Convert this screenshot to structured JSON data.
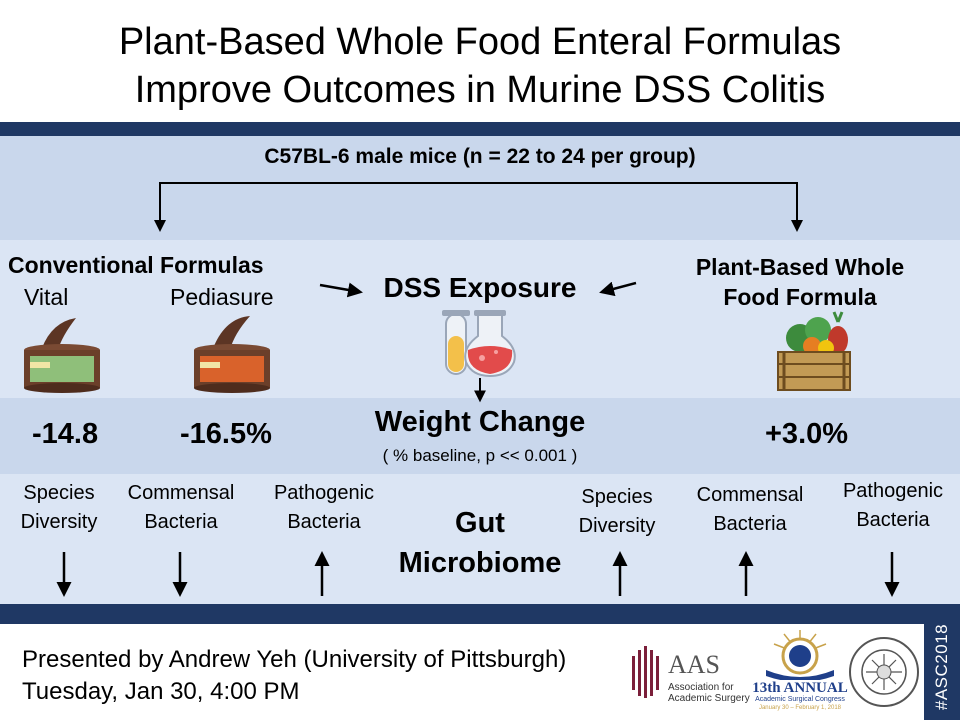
{
  "title": {
    "line1": "Plant-Based Whole Food Enteral Formulas",
    "line2": "Improve Outcomes in Murine DSS Colitis"
  },
  "study": {
    "population": "C57BL-6 male mice (n = 22 to 24 per group)"
  },
  "groups": {
    "conventional_heading": "Conventional Formulas",
    "vital_label": "Vital",
    "pediasure_label": "Pediasure",
    "dss_label": "DSS Exposure",
    "plant_heading_line1": "Plant-Based Whole",
    "plant_heading_line2": "Food Formula"
  },
  "weight": {
    "title": "Weight Change",
    "subtitle": "( % baseline, p << 0.001  )",
    "vital": "-14.8",
    "pediasure": "-16.5%",
    "plant": "+3.0%"
  },
  "microbiome": {
    "title_line1": "Gut",
    "title_line2": "Microbiome",
    "conventional": [
      {
        "line1": "Species",
        "line2": "Diversity",
        "direction": "down"
      },
      {
        "line1": "Commensal",
        "line2": "Bacteria",
        "direction": "down"
      },
      {
        "line1": "Pathogenic",
        "line2": "Bacteria",
        "direction": "up"
      }
    ],
    "plant": [
      {
        "line1": "Species",
        "line2": "Diversity",
        "direction": "up"
      },
      {
        "line1": "Commensal",
        "line2": "Bacteria",
        "direction": "up"
      },
      {
        "line1": "Pathogenic",
        "line2": "Bacteria",
        "direction": "down"
      }
    ]
  },
  "footer": {
    "presenter": "Presented by Andrew Yeh (University of Pittsburgh)",
    "session": "Tuesday, Jan 30, 4:00 PM",
    "hashtag": "#ASC2018"
  },
  "logos": {
    "aas_abbrev": "AAS",
    "aas_name_line1": "Association for",
    "aas_name_line2": "Academic Surgery",
    "asc_annual": "13th ANNUAL",
    "asc_name": "Academic Surgical Congress",
    "asc_dates": "January 30 – February 1, 2018",
    "sus_text": "SOCIETY OF UNIVERSITY SURGEONS"
  },
  "colors": {
    "navy": "#1f3864",
    "band_dark": "#c9d7ec",
    "band_light": "#dbe5f4",
    "can_green": "#8fbf7a",
    "can_orange": "#d9622b",
    "can_brown": "#6b3f2a",
    "flask_yellow": "#f3c04a",
    "flask_red": "#e24b4b",
    "crate": "#c29a55",
    "aas_maroon": "#7b1f3a",
    "asc_gold": "#c8a24a",
    "asc_navy": "#1f3f8a"
  }
}
